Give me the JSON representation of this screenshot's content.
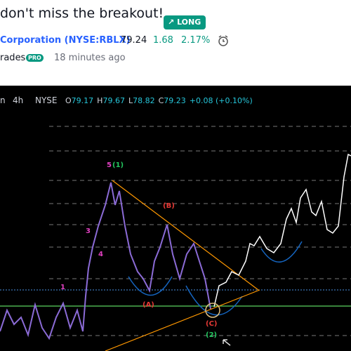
{
  "header": {
    "title": "don't miss the breakout!",
    "badge": "LONG",
    "symbol": "Corporation (NYSE:RBLX)",
    "price": "79.24",
    "change": "1.68",
    "change_pct": "2.17%",
    "author": "rades",
    "author_badge": "PRO",
    "time": "18 minutes ago"
  },
  "chart": {
    "symbol_tail": "n",
    "interval": "4h",
    "exchange": "NYSE",
    "ohlc": [
      {
        "label": "O",
        "value": "79.17"
      },
      {
        "label": "H",
        "value": "79.67"
      },
      {
        "label": "L",
        "value": "78.82"
      },
      {
        "label": "C",
        "value": "79.23"
      }
    ],
    "change": "+0.08 (+0.10%)",
    "annotations": [
      {
        "text": "5",
        "color": "#e040c0"
      },
      {
        "text": "(1)",
        "color": "#22c55e"
      },
      {
        "text": "(B)",
        "color": "#e53935"
      },
      {
        "text": "3",
        "color": "#e040c0"
      },
      {
        "text": "4",
        "color": "#e040c0"
      },
      {
        "text": "1",
        "color": "#e040c0"
      },
      {
        "text": "(A)",
        "color": "#e53935"
      },
      {
        "text": "(C)",
        "color": "#e53935"
      },
      {
        "text": "(2)",
        "color": "#22c55e"
      }
    ]
  }
}
